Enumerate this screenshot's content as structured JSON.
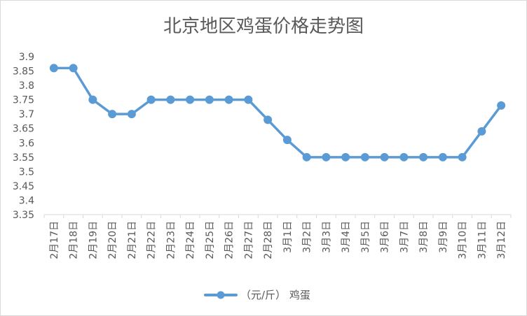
{
  "chart_data": {
    "type": "line",
    "title": "北京地区鸡蛋价格走势图",
    "xlabel": "",
    "ylabel": "",
    "categories": [
      "2月17日",
      "2月18日",
      "2月19日",
      "2月20日",
      "2月21日",
      "2月22日",
      "2月23日",
      "2月24日",
      "2月25日",
      "2月26日",
      "2月27日",
      "2月28日",
      "3月1日",
      "3月2日",
      "3月3日",
      "3月4日",
      "3月5日",
      "3月6日",
      "3月7日",
      "3月8日",
      "3月9日",
      "3月10日",
      "3月11日",
      "3月12日"
    ],
    "series": [
      {
        "name": "（元/斤）  鸡蛋",
        "values": [
          3.86,
          3.86,
          3.75,
          3.7,
          3.7,
          3.75,
          3.75,
          3.75,
          3.75,
          3.75,
          3.75,
          3.68,
          3.61,
          3.55,
          3.55,
          3.55,
          3.55,
          3.55,
          3.55,
          3.55,
          3.55,
          3.55,
          3.64,
          3.73
        ]
      }
    ],
    "ylim": [
      3.35,
      3.9
    ],
    "yticks": [
      "3.9",
      "3.85",
      "3.8",
      "3.75",
      "3.7",
      "3.65",
      "3.6",
      "3.55",
      "3.5",
      "3.45",
      "3.4",
      "3.35"
    ],
    "grid": false,
    "legend": "bottom",
    "colors": {
      "line": "#5b9bd5",
      "axis": "#d9d9d9",
      "text": "#595959"
    }
  }
}
